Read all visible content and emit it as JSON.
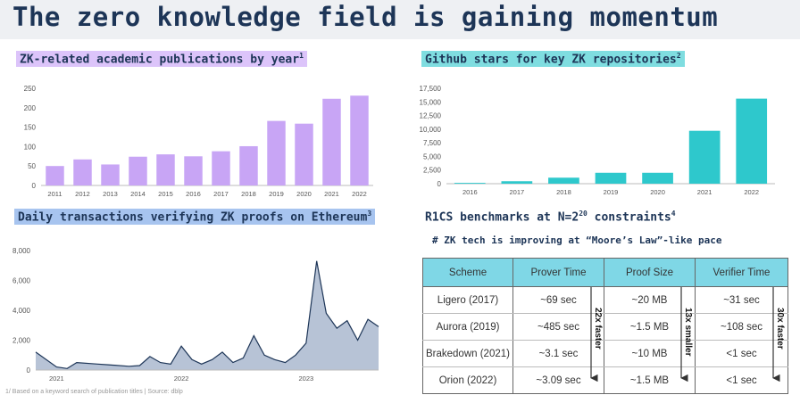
{
  "page": {
    "title": "The zero knowledge field is gaining momentum",
    "footnote": "1/ Based on a keyword search of publication titles | Source: dblp"
  },
  "colors": {
    "purple": "#c8a5f5",
    "teal": "#2ec8cc",
    "blue_highlight": "#a7c4ef",
    "navy": "#1d3557",
    "area_fill": "#b7c3d6"
  },
  "panels": {
    "publications": {
      "title": "ZK-related academic publications by year",
      "sup": "1"
    },
    "github": {
      "title": "Github stars for key ZK repositories",
      "sup": "2"
    },
    "transactions": {
      "title": "Daily transactions verifying ZK proofs on Ethereum",
      "sup": "3"
    },
    "r1cs": {
      "title": "R1CS benchmarks at N=2",
      "exp": "20",
      "title_tail": " constraints",
      "sup": "4",
      "note": "# ZK tech is improving at “Moore’s Law”-like pace"
    }
  },
  "table": {
    "headers": [
      "Scheme",
      "Prover Time",
      "Proof Size",
      "Verifier Time"
    ],
    "rows": [
      [
        "Ligero (2017)",
        "~69 sec",
        "~20 MB",
        "~31 sec"
      ],
      [
        "Aurora (2019)",
        "~485 sec",
        "~1.5 MB",
        "~108 sec"
      ],
      [
        "Brakedown (2021)",
        "~3.1 sec",
        "~10 MB",
        "<1 sec"
      ],
      [
        "Orion (2022)",
        "~3.09 sec",
        "~1.5 MB",
        "<1 sec"
      ]
    ],
    "arrows": [
      "22x faster",
      "13x smaller",
      "30x faster"
    ]
  },
  "chart_data": [
    {
      "type": "bar",
      "title": "ZK-related academic publications by year",
      "categories": [
        "2011",
        "2012",
        "2013",
        "2014",
        "2015",
        "2016",
        "2017",
        "2018",
        "2019",
        "2020",
        "2021",
        "2022"
      ],
      "values": [
        50,
        67,
        54,
        74,
        80,
        75,
        88,
        101,
        166,
        159,
        223,
        231
      ],
      "ylim": [
        0,
        250
      ],
      "yticks": [
        0,
        50,
        100,
        150,
        200,
        250
      ],
      "color": "#c8a5f5",
      "grid": false
    },
    {
      "type": "bar",
      "title": "Github stars for key ZK repositories",
      "categories": [
        "2016",
        "2017",
        "2018",
        "2019",
        "2020",
        "2021",
        "2022"
      ],
      "values": [
        150,
        450,
        1100,
        2000,
        2000,
        9700,
        15600
      ],
      "ylim": [
        0,
        17500
      ],
      "yticks": [
        "0",
        "2,500",
        "5,000",
        "7,500",
        "10,000",
        "12,500",
        "15,000",
        "17,500"
      ],
      "color": "#2ec8cc",
      "grid": false
    },
    {
      "type": "area",
      "title": "Daily transactions verifying ZK proofs on Ethereum",
      "x_ticks": [
        "2021",
        "2022",
        "2023"
      ],
      "ylim": [
        0,
        8000
      ],
      "yticks": [
        "0",
        "2,000",
        "4,000",
        "6,000",
        "8,000"
      ],
      "x": [
        "2020-11",
        "2021-01",
        "2021-02",
        "2021-03",
        "2021-05",
        "2021-06",
        "2021-08",
        "2021-09",
        "2021-10",
        "2021-11",
        "2021-12",
        "2022-01",
        "2022-02",
        "2022-03",
        "2022-04",
        "2022-05",
        "2022-06",
        "2022-07",
        "2022-08",
        "2022-09",
        "2022-10",
        "2022-11",
        "2022-12",
        "2023-01",
        "2023-02",
        "2023-03",
        "2023-04",
        "2023-05",
        "2023-06",
        "2023-07",
        "2023-08"
      ],
      "values": [
        1200,
        200,
        100,
        500,
        400,
        350,
        250,
        300,
        900,
        500,
        400,
        1600,
        700,
        400,
        700,
        1200,
        500,
        800,
        2300,
        1000,
        700,
        500,
        1000,
        1800,
        7300,
        3800,
        2800,
        3300,
        2000,
        3400,
        2900
      ],
      "color": "#b7c3d6",
      "line_color": "#1d3557",
      "grid": false
    }
  ]
}
